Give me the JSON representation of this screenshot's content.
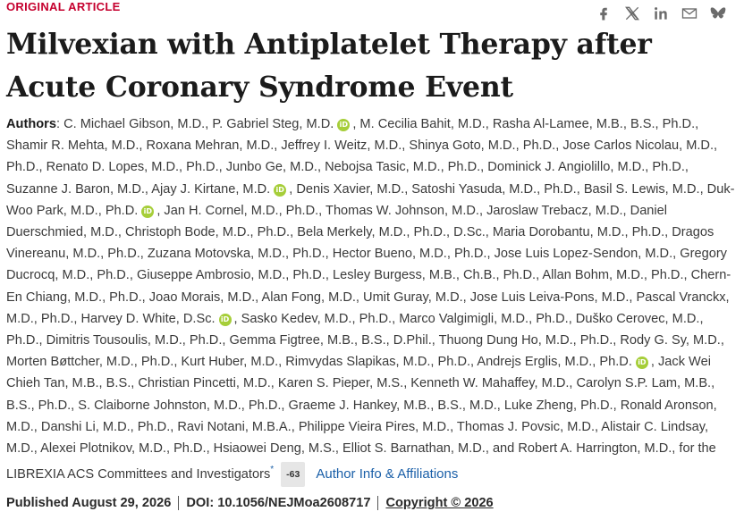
{
  "article": {
    "eyebrow": "ORIGINAL ARTICLE",
    "title": "Milvexian with Antiplatelet Therapy after Acute Coronary Syndrome Event"
  },
  "share": {
    "icons": [
      "facebook-icon",
      "x-icon",
      "linkedin-icon",
      "email-icon",
      "bluesky-icon"
    ],
    "icon_color": "#6b6b6b"
  },
  "authors": {
    "label": "Authors",
    "colon": ":",
    "orcid_glyph": "iD",
    "seg1": "C. Michael Gibson, M.D., P. Gabriel Steg, M.D.",
    "seg2": ", M. Cecilia Bahit, M.D., Rasha Al-Lamee, M.B., B.S., Ph.D., Shamir R. Mehta, M.D., Roxana Mehran, M.D., Jeffrey I. Weitz, M.D., Shinya Goto, M.D., Ph.D., Jose Carlos Nicolau, M.D., Ph.D., Renato D. Lopes, M.D., Ph.D., Junbo Ge, M.D., Nebojsa Tasic, M.D., Ph.D., Dominick J. Angiolillo, M.D., Ph.D., Suzanne J. Baron, M.D., Ajay J. Kirtane, M.D.",
    "seg3": ", Denis Xavier, M.D., Satoshi Yasuda, M.D., Ph.D., Basil S. Lewis, M.D., Duk-Woo Park, M.D., Ph.D.",
    "seg4": ", Jan H. Cornel, M.D., Ph.D., Thomas W. Johnson, M.D., Jaroslaw Trebacz, M.D., Daniel Duerschmied, M.D., Christoph Bode, M.D., Ph.D., Bela Merkely, M.D., Ph.D., D.Sc., Maria Dorobantu, M.D., Ph.D., Dragos Vinereanu, M.D., Ph.D., Zuzana Motovska, M.D., Ph.D., Hector Bueno, M.D., Ph.D., Jose Luis Lopez-Sendon, M.D., Gregory Ducrocq, M.D., Ph.D., Giuseppe Ambrosio, M.D., Ph.D., Lesley Burgess, M.B., Ch.B., Ph.D., Allan Bohm, M.D., Ph.D., Chern-En Chiang, M.D., Ph.D., Joao Morais, M.D., Alan Fong, M.D., Umit Guray, M.D., Jose Luis Leiva-Pons, M.D., Pascal Vranckx, M.D., Ph.D., Harvey D. White, D.Sc.",
    "seg5": ", Sasko Kedev, M.D., Ph.D., Marco Valgimigli, M.D., Ph.D., Duško Cerovec, M.D., Ph.D., Dimitris Tousoulis, M.D., Ph.D., Gemma Figtree, M.B., B.S., D.Phil., Thuong Dung Ho, M.D., Ph.D., Rody G. Sy, M.D., Morten Bøttcher, M.D., Ph.D., Kurt Huber, M.D., Rimvydas Slapikas, M.D., Ph.D., Andrejs Erglis, M.D., Ph.D.",
    "seg6": ", Jack Wei Chieh Tan, M.B., B.S., Christian Pincetti, M.D., Karen S. Pieper, M.S., Kenneth W. Mahaffey, M.D., Carolyn S.P. Lam, M.B., B.S., Ph.D., S. Claiborne Johnston, M.D., Ph.D., Graeme J. Hankey, M.B., B.S., M.D., Luke Zheng, Ph.D., Ronald Aronson, M.D., Danshi Li, M.D., Ph.D., Ravi Notani, M.B.A., Philippe Vieira Pires, M.D., Thomas J. Povsic, M.D., Alistair C. Lindsay, M.D., Alexei Plotnikov, M.D., Ph.D., Hsiaowei Deng, M.S., Elliot S. Barnathan, M.D., and Robert A. Harrington, M.D., for the LIBREXIA ACS Committees and Investigators",
    "asterisk": "*",
    "count": "-63",
    "affiliations_link": "Author Info & Affiliations"
  },
  "publication": {
    "published": "Published August 29, 2026",
    "doi": "DOI: 10.1056/NEJMoa2608717",
    "copyright": "Copyright © 2026"
  },
  "colors": {
    "eyebrow": "#c5002e",
    "link": "#1a5fa8",
    "orcid": "#a6ce39"
  }
}
